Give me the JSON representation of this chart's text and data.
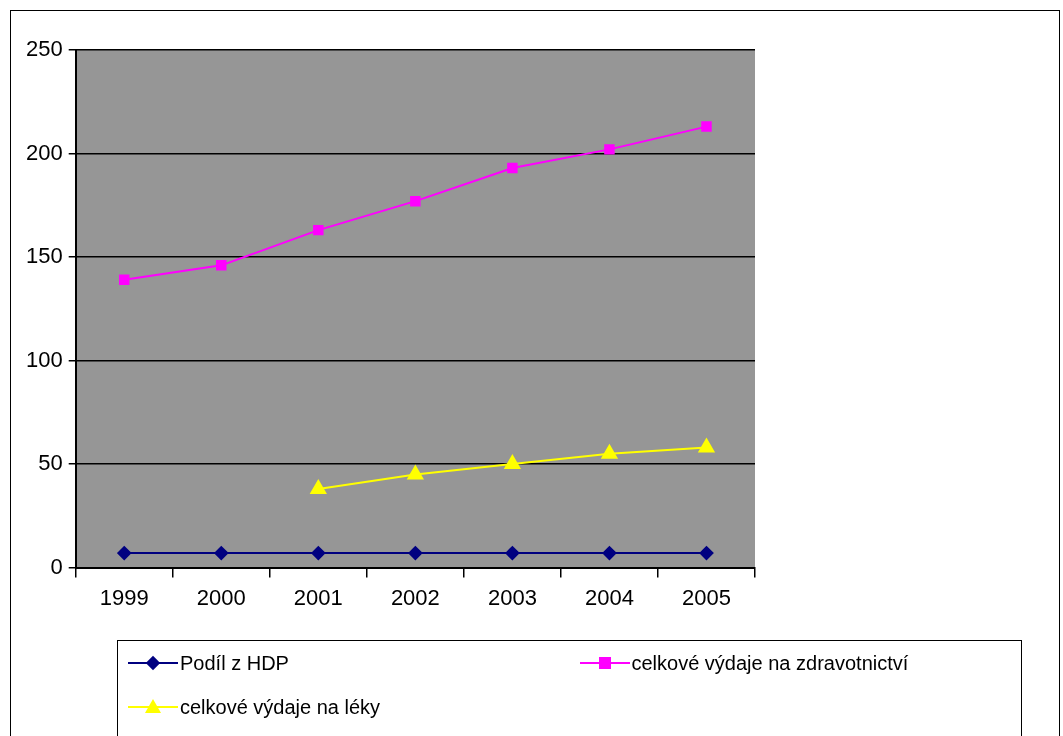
{
  "chart_data": {
    "type": "line",
    "categories": [
      "1999",
      "2000",
      "2001",
      "2002",
      "2003",
      "2004",
      "2005"
    ],
    "series": [
      {
        "name": "Podíl z HDP",
        "color": "#000080",
        "marker": "diamond",
        "values": [
          7,
          7,
          7,
          7,
          7,
          7,
          7
        ]
      },
      {
        "name": "celkové výdaje na zdravotnictví",
        "color": "#ff00ff",
        "marker": "square",
        "values": [
          139,
          146,
          163,
          177,
          193,
          202,
          213
        ]
      },
      {
        "name": "celkové výdaje na léky",
        "color": "#ffff00",
        "marker": "triangle",
        "values": [
          null,
          null,
          38,
          45,
          50,
          55,
          58
        ]
      }
    ],
    "ylim": [
      0,
      250
    ],
    "yticks": [
      0,
      50,
      100,
      150,
      200,
      250
    ],
    "grid": "y",
    "legend": "bottom",
    "line_style": "solid"
  }
}
